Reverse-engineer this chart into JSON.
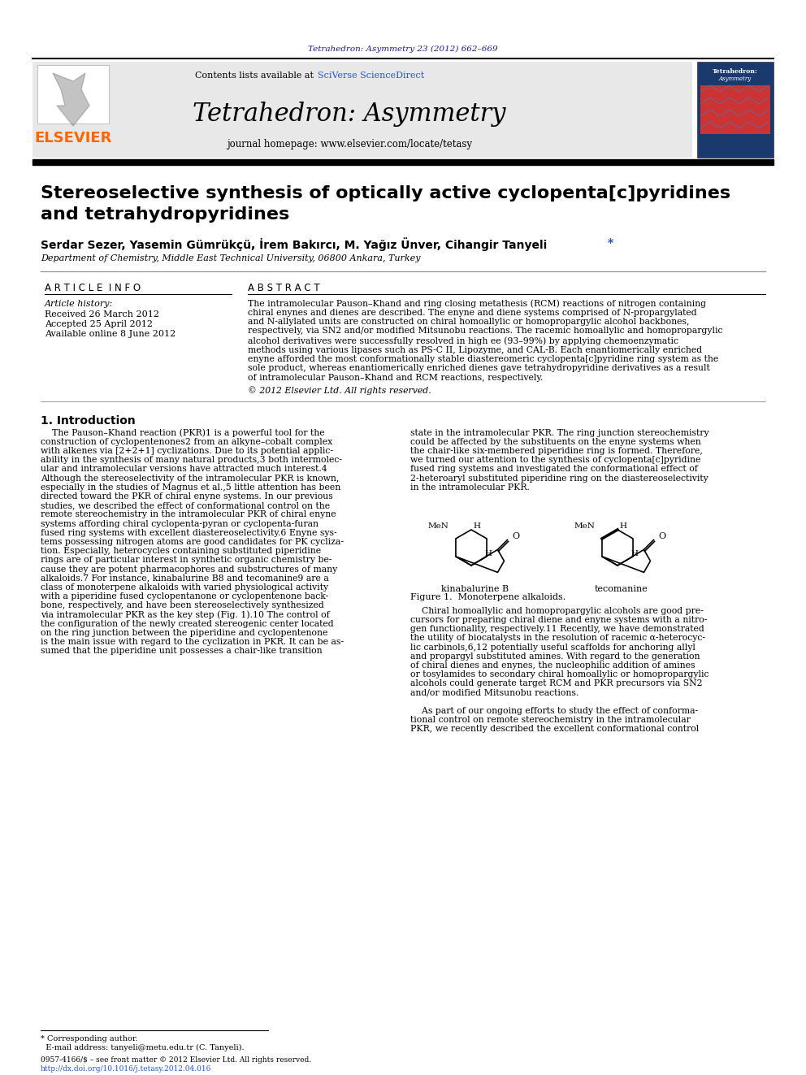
{
  "page_bg": "#ffffff",
  "header_citation": "Tetrahedron: Asymmetry 23 (2012) 662–669",
  "header_citation_color": "#1a1a8c",
  "journal_header_bg": "#e8e8e8",
  "journal_title": "Tetrahedron: Asymmetry",
  "journal_homepage": "journal homepage: www.elsevier.com/locate/tetasy",
  "contents_text": "Contents lists available at SciVerse ScienceDirect",
  "elsevier_color": "#ff6600",
  "article_title": "Stereoselective synthesis of optically active cyclopenta[c]pyridines\nand tetrahydropyridines",
  "authors": "Serdar Sezer, Yasemin Gümrükçü, İrem Bakırcı, M. Yağız Ünver, Cihangir Tanyeli *",
  "affiliation": "Department of Chemistry, Middle East Technical University, 06800 Ankara, Turkey",
  "article_info_title": "A R T I C L E  I N F O",
  "abstract_title": "A B S T R A C T",
  "article_history_label": "Article history:",
  "received": "Received 26 March 2012",
  "accepted": "Accepted 25 April 2012",
  "available": "Available online 8 June 2012",
  "copyright_text": "© 2012 Elsevier Ltd. All rights reserved.",
  "intro_title": "1. Introduction",
  "figure1_caption": "Figure 1.  Monoterpene alkaloids.",
  "kinabalurine_label": "kinabalurine B",
  "tecomanine_label": "tecomanine",
  "footnote_corresponding": "* Corresponding author.",
  "footnote_email": "  E-mail address: tanyeli@metu.edu.tr (C. Tanyeli).",
  "issn_line1": "0957-4166/$ – see front matter © 2012 Elsevier Ltd. All rights reserved.",
  "issn_line2": "http://dx.doi.org/10.1016/j.tetasy.2012.04.016"
}
